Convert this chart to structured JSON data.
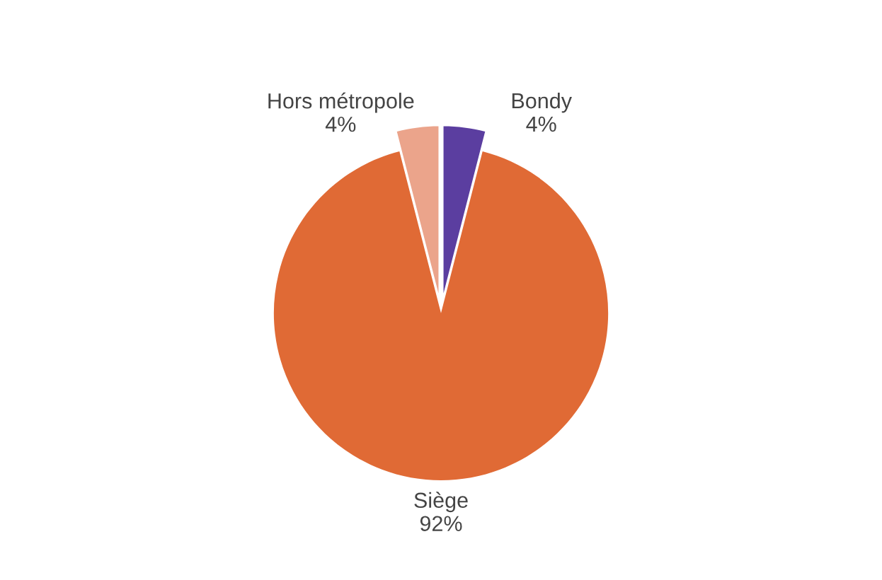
{
  "chart_data": {
    "type": "pie",
    "categories": [
      "Hors métropole",
      "Bondy",
      "Siège"
    ],
    "values": [
      4,
      4,
      92
    ],
    "value_labels": [
      "4%",
      "4%",
      "92%"
    ],
    "colors": [
      "#eba48b",
      "#5b3ea0",
      "#e06a35"
    ],
    "legend": false
  }
}
